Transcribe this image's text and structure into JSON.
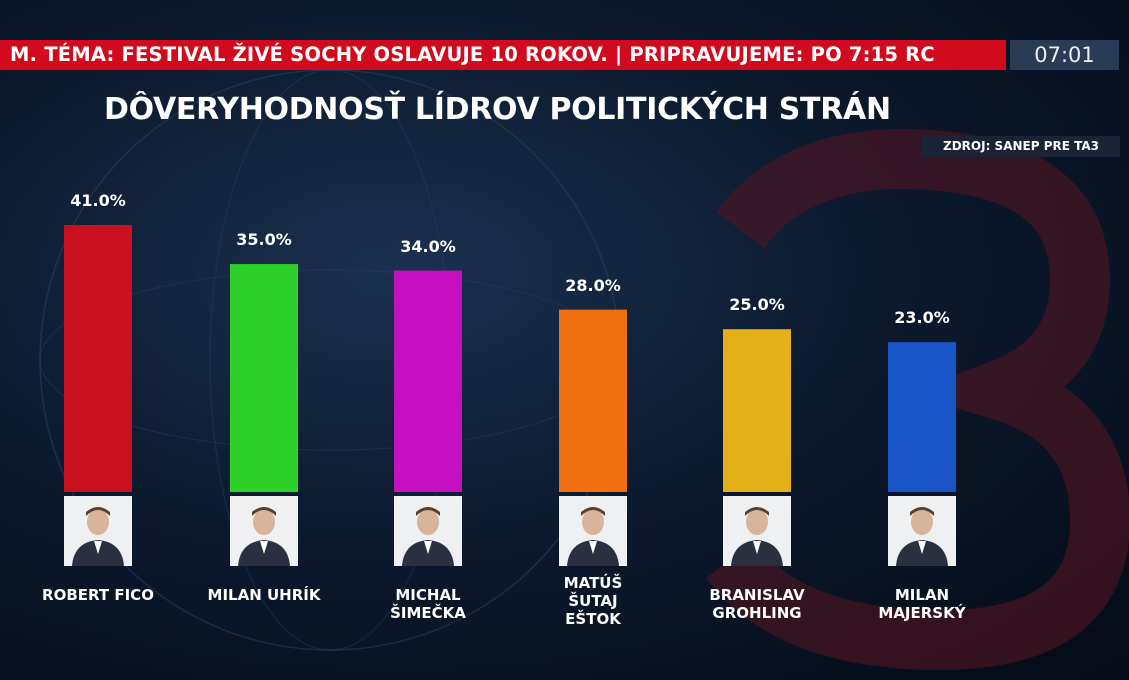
{
  "ticker": {
    "text": "M. TÉMA: FESTIVAL ŽIVÉ SOCHY OSLAVUJE 10 ROKOV.  |  PRIPRAVUJEME: PO 7:15 RC",
    "clock": "07:01",
    "color": "#d20a1e"
  },
  "header": {
    "title": "DÔVERYHODNOSŤ LÍDROV POLITICKÝCH STRÁN",
    "source": "ZDROJ: SANEP PRE TA3"
  },
  "chart_data": {
    "type": "bar",
    "title": "DÔVERYHODNOSŤ LÍDROV POLITICKÝCH STRÁN",
    "xlabel": "",
    "ylabel": "",
    "ylim": [
      0,
      41
    ],
    "grid": false,
    "categories": [
      "ROBERT FICO",
      "MILAN UHRÍK",
      "MICHAL\nŠIMEČKA",
      "MATÚŠ\nŠUTAJ\nEŠTOK",
      "BRANISLAV\nGROHLING",
      "MILAN\nMAJERSKÝ"
    ],
    "values": [
      41.0,
      35.0,
      34.0,
      28.0,
      25.0,
      23.0
    ],
    "value_labels": [
      "41.0%",
      "35.0%",
      "34.0%",
      "28.0%",
      "25.0%",
      "23.0%"
    ],
    "colors": [
      "#c8101e",
      "#2ed12a",
      "#c410c0",
      "#f06f10",
      "#e4b018",
      "#1a55c8"
    ],
    "icons": [
      "leader-photo",
      "leader-photo",
      "leader-photo",
      "leader-photo",
      "leader-photo",
      "leader-photo"
    ]
  }
}
